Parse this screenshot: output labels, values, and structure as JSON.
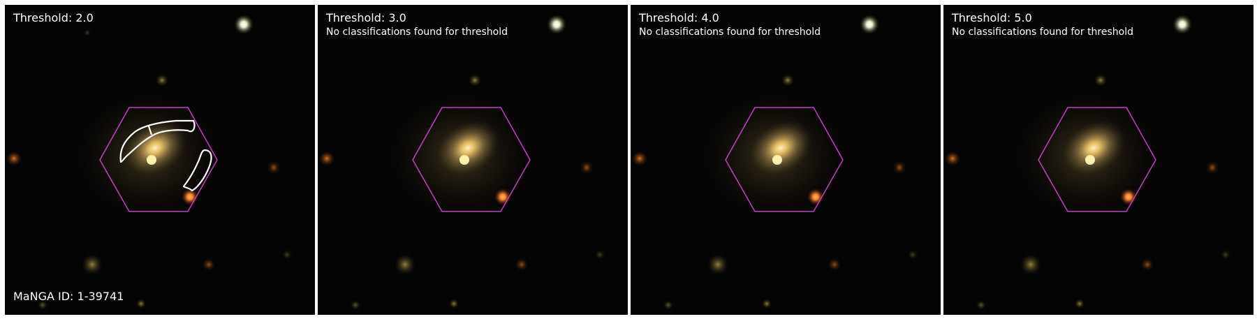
{
  "colors": {
    "hexagon": "#c040c0",
    "outline": "#ffffff",
    "background": "#050404",
    "galaxy_core": "#ffe7a0",
    "galaxy_halo": "#8a7340",
    "star_red": "#ff7a2a",
    "star_white": "#f4f8e6"
  },
  "manga_id_label": "MaNGA ID: 1-39741",
  "panels": [
    {
      "title": "Threshold: 2.0",
      "note": ""
    },
    {
      "title": "Threshold: 3.0",
      "note": "No classifications found for threshold"
    },
    {
      "title": "Threshold: 4.0",
      "note": "No classifications found for threshold"
    },
    {
      "title": "Threshold: 5.0",
      "note": "No classifications found for threshold"
    }
  ]
}
